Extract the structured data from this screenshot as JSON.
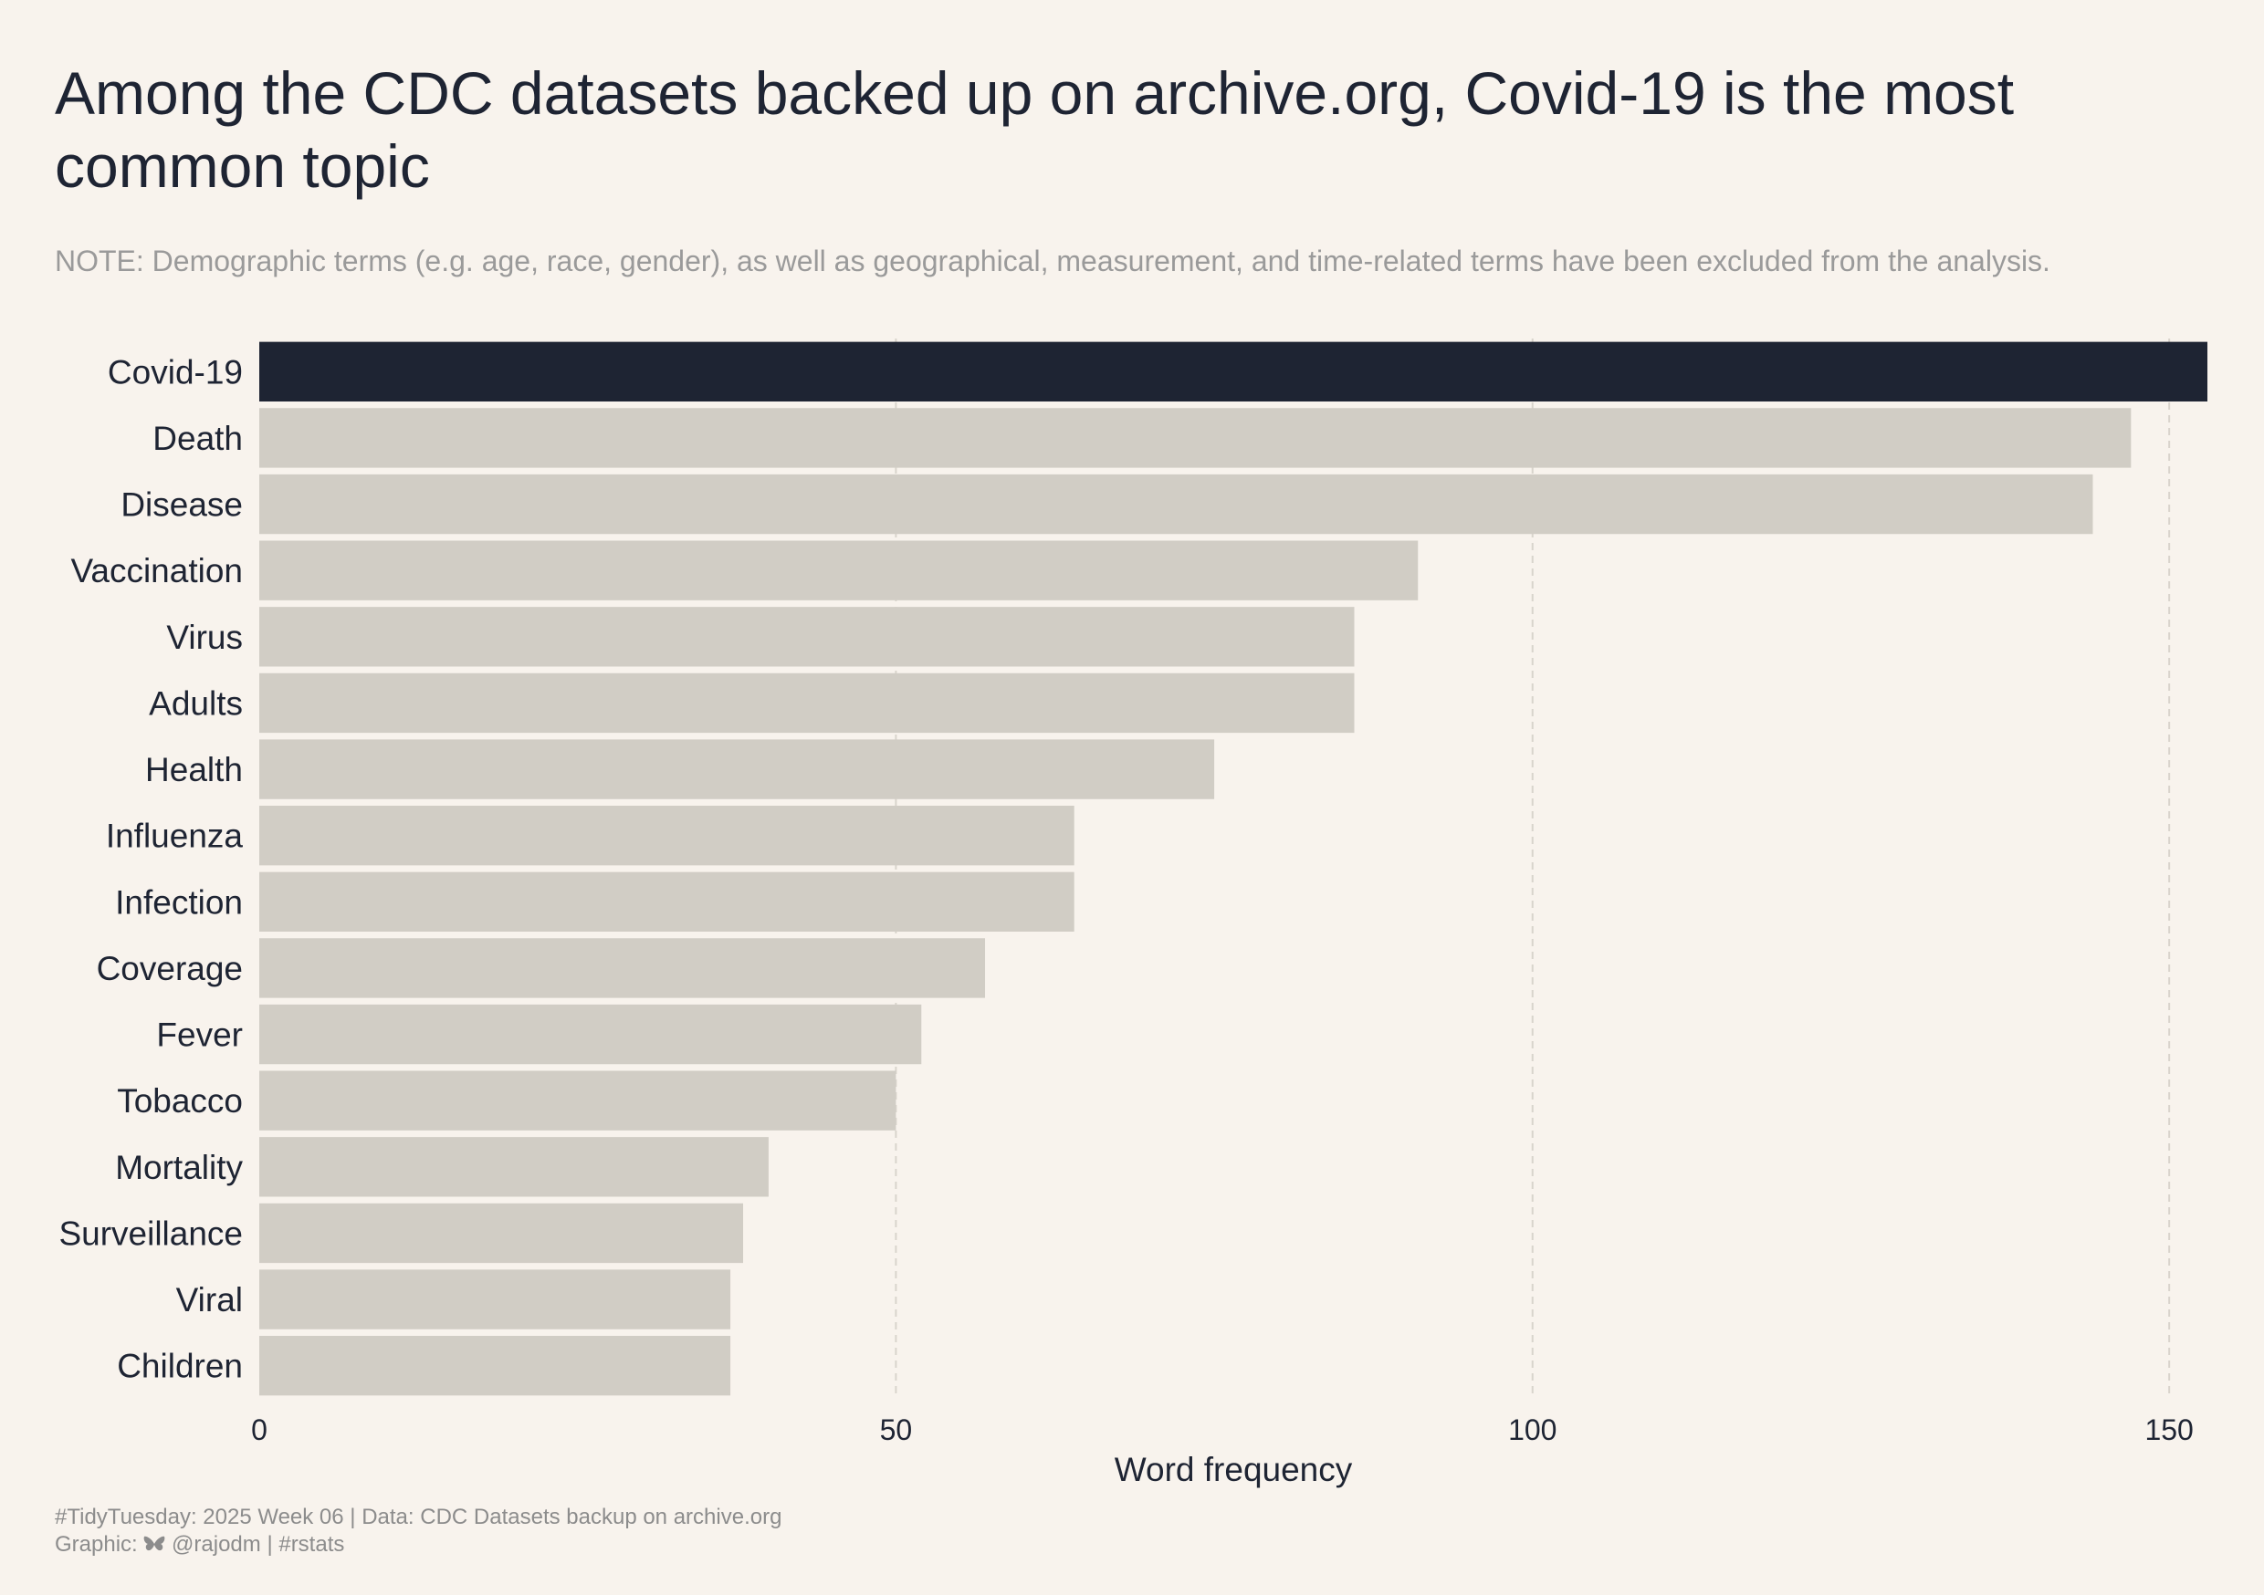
{
  "title": "Among the CDC datasets backed up on archive.org, Covid-19 is the most common topic",
  "subtitle": "NOTE: Demographic terms (e.g. age, race, gender), as well as geographical, measurement, and time-related terms have been excluded from the analysis.",
  "caption": {
    "line1": "#TidyTuesday: 2025 Week 06 | Data: CDC Datasets backup on archive.org",
    "line2_prefix": "Graphic:",
    "line2_icon": "butterfly-icon",
    "line2_suffix": "@rajodm | #rstats"
  },
  "colors": {
    "background": "#f8f3ed",
    "highlight": "#1e2433",
    "bar": "#d1cdc5",
    "grid": "#d9d4cc",
    "text": "#1e2433",
    "muted": "#9a9a9a"
  },
  "chart_data": {
    "type": "bar",
    "orientation": "horizontal",
    "categories": [
      "Covid-19",
      "Death",
      "Disease",
      "Vaccination",
      "Virus",
      "Adults",
      "Health",
      "Influenza",
      "Infection",
      "Coverage",
      "Fever",
      "Tobacco",
      "Mortality",
      "Surveillance",
      "Viral",
      "Children"
    ],
    "values": [
      153,
      147,
      144,
      91,
      86,
      86,
      75,
      64,
      64,
      57,
      52,
      50,
      40,
      38,
      37,
      37
    ],
    "highlight": "Covid-19",
    "xlabel": "Word frequency",
    "ylabel": "",
    "xlim": [
      0,
      153
    ],
    "xticks": [
      0,
      50,
      100,
      150
    ],
    "grid": "vertical dashed",
    "legend": "none"
  }
}
